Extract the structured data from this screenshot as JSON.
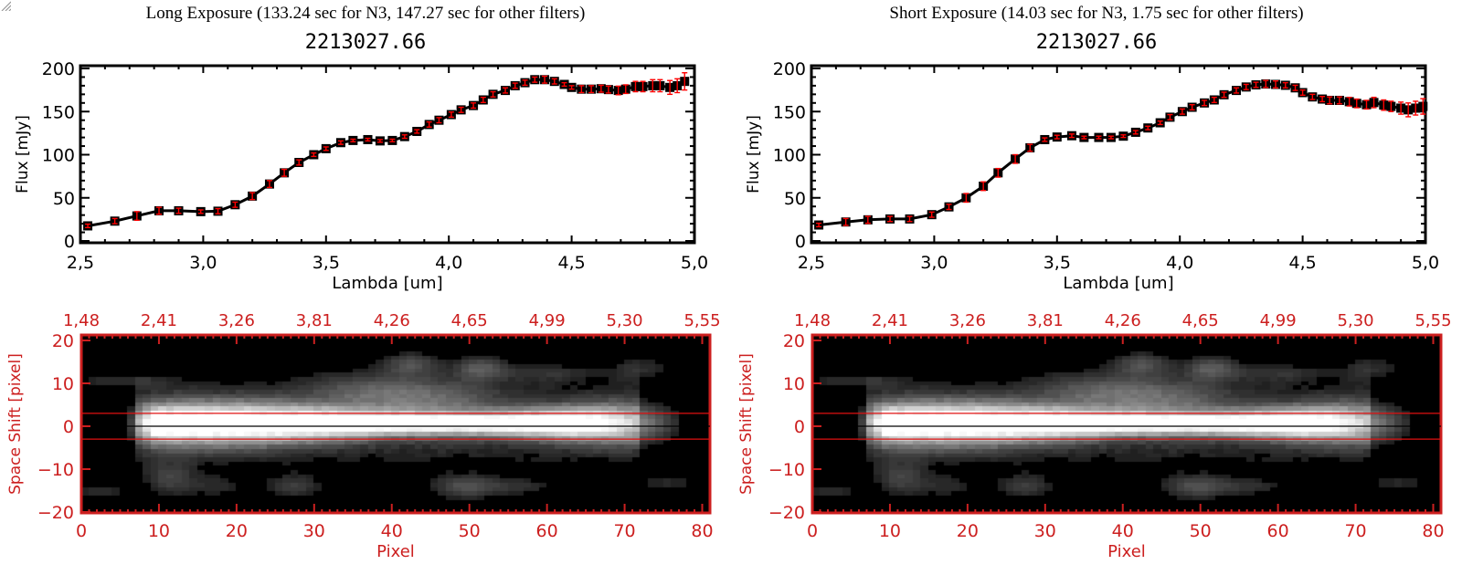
{
  "colors": {
    "axis_black": "#000000",
    "error_red": "#ff0000",
    "image_axis_red": "#cc1f1f",
    "background": "#ffffff"
  },
  "panels": [
    {
      "exposure_title": "Long Exposure (133.24 sec for N3, 147.27 sec for other filters)",
      "object_id": "2213027.66"
    },
    {
      "exposure_title": "Short Exposure (14.03 sec for N3, 1.75 sec for other filters)",
      "object_id": "2213027.66"
    }
  ],
  "chart_data": [
    {
      "type": "line",
      "panel": "long-exposure-spectrum",
      "title": "2213027.66",
      "xlabel": "Lambda [um]",
      "ylabel": "Flux [mJy]",
      "xlim": [
        2.5,
        5.0
      ],
      "ylim": [
        -5,
        205
      ],
      "xticks": [
        "2.5",
        "3.0",
        "3.5",
        "4.0",
        "4.5",
        "5.0"
      ],
      "yticks": [
        "0",
        "50",
        "100",
        "150",
        "200"
      ],
      "markers": "filled squares with red error bars",
      "x": [
        2.53,
        2.64,
        2.73,
        2.82,
        2.9,
        2.99,
        3.06,
        3.13,
        3.2,
        3.27,
        3.33,
        3.39,
        3.45,
        3.5,
        3.56,
        3.61,
        3.67,
        3.72,
        3.77,
        3.82,
        3.87,
        3.92,
        3.96,
        4.01,
        4.05,
        4.1,
        4.14,
        4.18,
        4.23,
        4.27,
        4.31,
        4.35,
        4.39,
        4.43,
        4.47,
        4.5,
        4.54,
        4.58,
        4.62,
        4.65,
        4.69,
        4.72,
        4.76,
        4.79,
        4.83,
        4.86,
        4.9,
        4.93,
        4.96
      ],
      "y": [
        17.5,
        23,
        29,
        35,
        35,
        34,
        34.5,
        42,
        52,
        66,
        79,
        91,
        100,
        107,
        114,
        116.5,
        117.5,
        116,
        116.5,
        121,
        127,
        135,
        140,
        146.5,
        152,
        157,
        163.5,
        170,
        174.5,
        180,
        183.5,
        187,
        187,
        185,
        181.5,
        178,
        176,
        176,
        176.5,
        175.5,
        174.5,
        176,
        179,
        179,
        180,
        180,
        178,
        180,
        185
      ],
      "yerr": [
        2,
        3,
        5,
        4,
        3,
        2,
        3,
        3,
        4,
        4,
        4,
        3,
        2,
        2,
        2,
        1.5,
        1.5,
        1.5,
        1.5,
        2,
        2,
        3,
        3,
        3,
        3,
        3,
        3,
        3,
        3,
        3,
        3,
        3,
        4,
        3,
        2,
        2,
        4,
        4,
        4,
        4,
        5,
        5,
        6,
        6,
        7,
        7,
        8,
        8,
        10
      ]
    },
    {
      "type": "image",
      "panel": "long-exposure-2d-spectrum",
      "xlabel": "Pixel",
      "ylabel": "Space Shift [pixel]",
      "xlim": [
        0,
        81
      ],
      "ylim": [
        -21,
        21
      ],
      "xticks": [
        "0",
        "10",
        "20",
        "30",
        "40",
        "50",
        "60",
        "70",
        "80"
      ],
      "yticks": [
        "20",
        "10",
        "0",
        "-10",
        "-20"
      ],
      "top_xticks": [
        "1.48",
        "2.41",
        "3.26",
        "3.81",
        "4.26",
        "4.65",
        "4.99",
        "5.30",
        "5.55"
      ],
      "aperture_lines": [
        3,
        -3
      ],
      "center_line": 0
    },
    {
      "type": "line",
      "panel": "short-exposure-spectrum",
      "title": "2213027.66",
      "xlabel": "Lambda [um]",
      "ylabel": "Flux [mJy]",
      "xlim": [
        2.5,
        5.0
      ],
      "ylim": [
        -5,
        205
      ],
      "xticks": [
        "2.5",
        "3.0",
        "3.5",
        "4.0",
        "4.5",
        "5.0"
      ],
      "yticks": [
        "0",
        "50",
        "100",
        "150",
        "200"
      ],
      "markers": "filled squares with red error bars",
      "x": [
        2.53,
        2.64,
        2.73,
        2.82,
        2.9,
        2.99,
        3.06,
        3.13,
        3.2,
        3.26,
        3.33,
        3.39,
        3.45,
        3.5,
        3.56,
        3.61,
        3.67,
        3.72,
        3.77,
        3.82,
        3.87,
        3.92,
        3.96,
        4.01,
        4.05,
        4.1,
        4.14,
        4.18,
        4.23,
        4.27,
        4.31,
        4.35,
        4.39,
        4.43,
        4.47,
        4.5,
        4.54,
        4.58,
        4.61,
        4.65,
        4.69,
        4.72,
        4.76,
        4.79,
        4.83,
        4.86,
        4.9,
        4.93,
        4.96,
        4.99
      ],
      "y": [
        18.5,
        22,
        24.5,
        25.5,
        25.5,
        30.5,
        39.5,
        50,
        63.5,
        79,
        95,
        108,
        117.5,
        120.5,
        122,
        120,
        120,
        120,
        121.5,
        126,
        131,
        137,
        143.5,
        150,
        155,
        160,
        163.5,
        169.5,
        174.5,
        178.5,
        181,
        182,
        181.5,
        180.5,
        177.5,
        172,
        167,
        164.5,
        163,
        163,
        161.5,
        159.5,
        158,
        160.5,
        157.5,
        156,
        154,
        152,
        154,
        156
      ],
      "yerr": [
        2,
        4,
        4,
        3,
        3,
        3,
        3,
        5,
        5,
        5,
        5,
        4,
        2,
        2,
        2,
        1.5,
        1.5,
        1.5,
        1.5,
        2,
        2,
        2,
        3,
        3,
        3,
        3,
        3,
        3,
        3,
        3,
        3,
        4,
        4,
        3,
        3,
        3,
        3,
        3,
        4,
        4,
        5,
        5,
        5,
        6,
        6,
        6,
        7,
        8,
        8,
        9
      ]
    },
    {
      "type": "image",
      "panel": "short-exposure-2d-spectrum",
      "xlabel": "Pixel",
      "ylabel": "Space Shift [pixel]",
      "xlim": [
        0,
        81
      ],
      "ylim": [
        -21,
        21
      ],
      "xticks": [
        "0",
        "10",
        "20",
        "30",
        "40",
        "50",
        "60",
        "70",
        "80"
      ],
      "yticks": [
        "20",
        "10",
        "0",
        "-10",
        "-20"
      ],
      "top_xticks": [
        "1.48",
        "2.41",
        "3.26",
        "3.81",
        "4.26",
        "4.65",
        "4.99",
        "5.30",
        "5.55"
      ],
      "aperture_lines": [
        3,
        -3
      ],
      "center_line": 0
    }
  ]
}
